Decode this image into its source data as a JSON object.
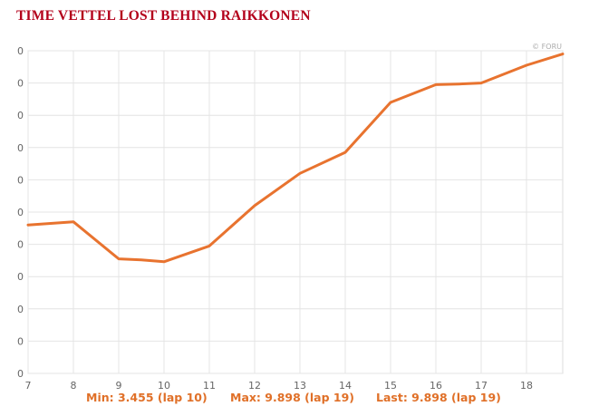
{
  "chart_data": {
    "type": "line",
    "title": "TIME VETTEL LOST BEHIND RAIKKONEN",
    "copyright": "© FORU",
    "x": [
      7,
      7.5,
      8,
      9,
      9.5,
      10,
      11,
      12,
      13,
      14,
      15,
      16,
      16.5,
      17,
      18,
      18.8
    ],
    "values": [
      4.6,
      4.65,
      4.7,
      3.55,
      3.52,
      3.46,
      3.95,
      5.2,
      6.2,
      6.85,
      8.4,
      8.95,
      8.97,
      9.0,
      9.55,
      9.898
    ],
    "xlim": [
      7,
      18.8
    ],
    "ylim": [
      0,
      10
    ],
    "x_ticks": [
      "7",
      "8",
      "9",
      "10",
      "11",
      "12",
      "13",
      "14",
      "15",
      "16",
      "17",
      "18"
    ],
    "y_ticks": [
      "0",
      "0",
      "0",
      "0",
      "0",
      "0",
      "0",
      "0",
      "0",
      "0",
      "0"
    ],
    "grid": true,
    "line_color": "#e8732f",
    "stats": {
      "min": "Min: 3.455 (lap 10)",
      "max": "Max: 9.898 (lap 19)",
      "last": "Last: 9.898 (lap 19)"
    }
  }
}
